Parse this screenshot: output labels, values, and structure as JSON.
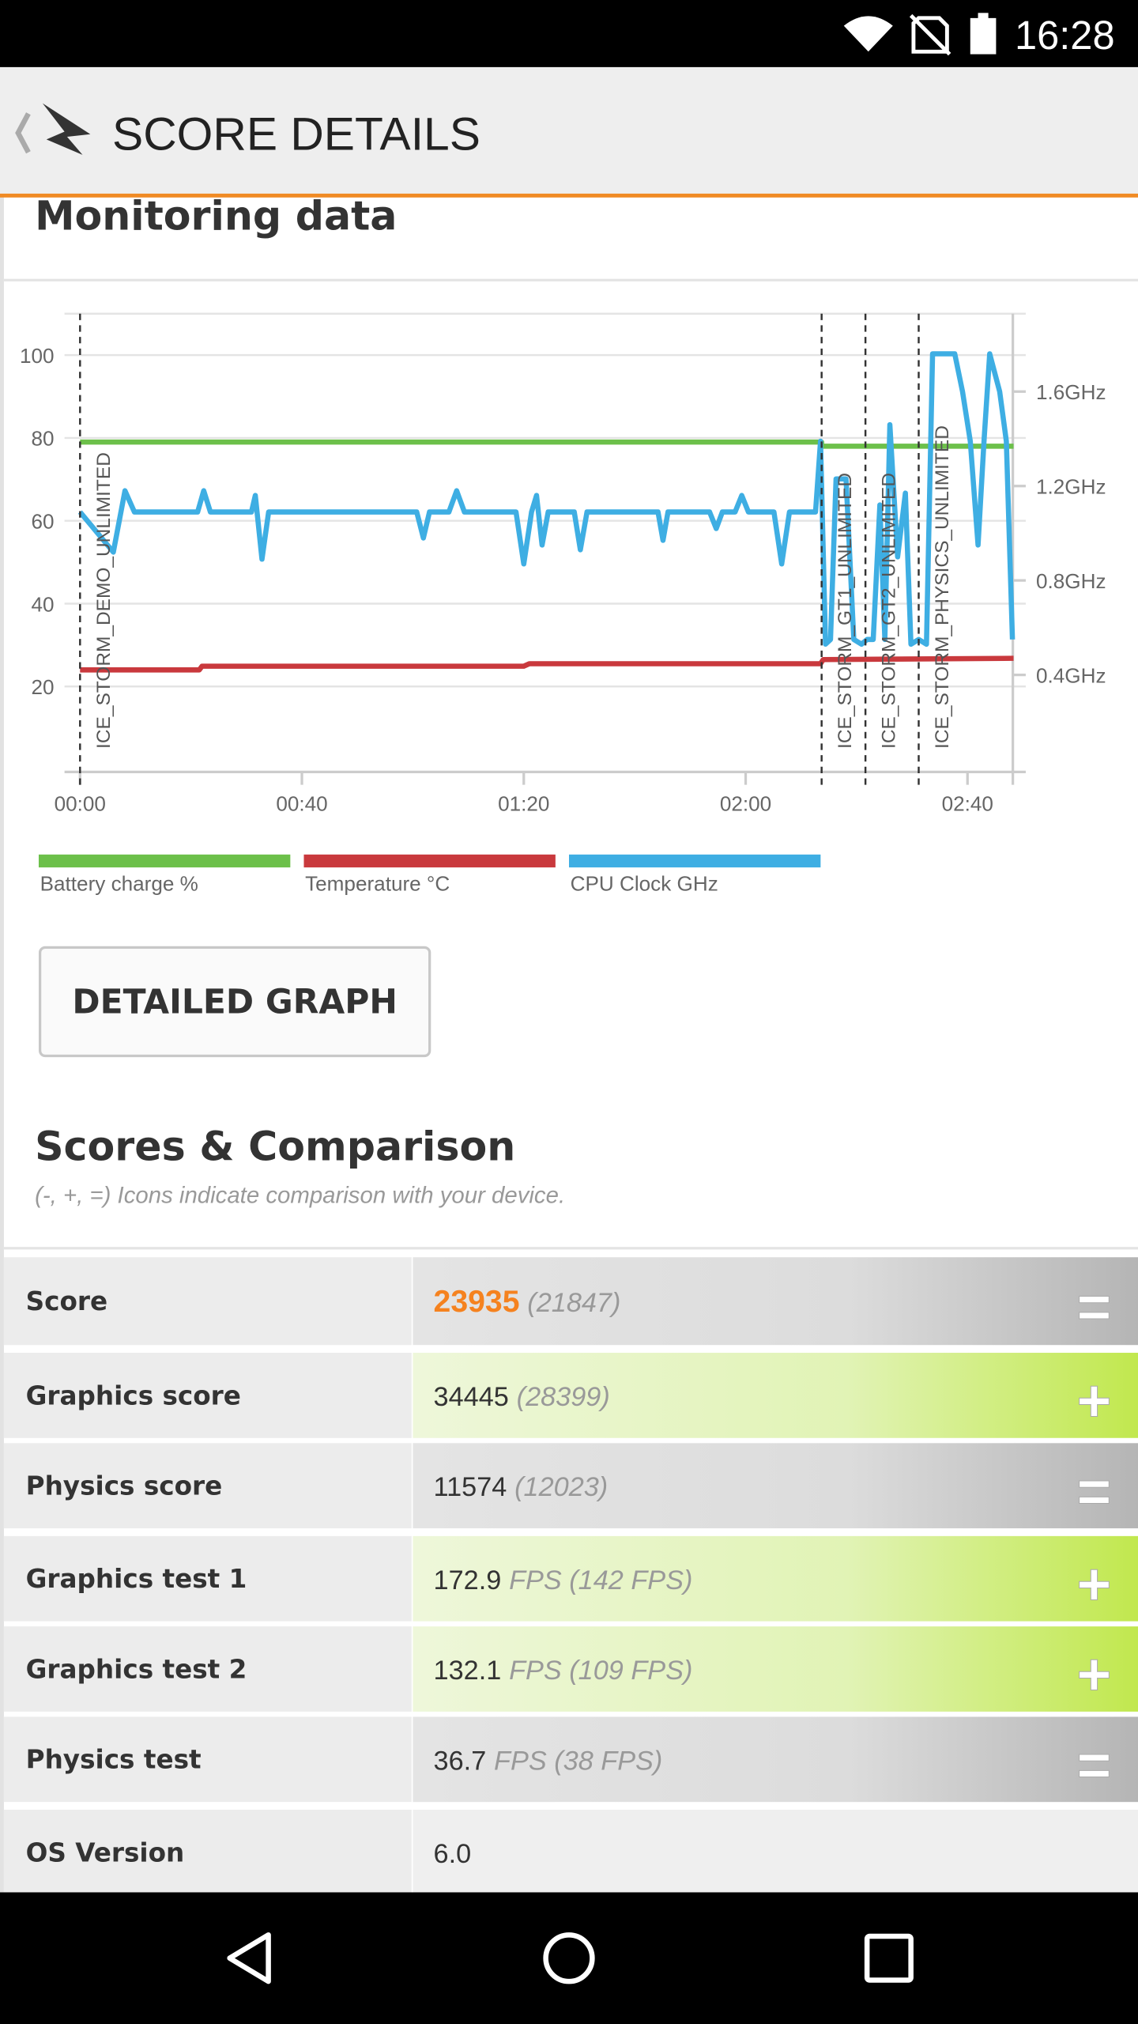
{
  "status_bar": {
    "time": "16:28"
  },
  "header": {
    "title": "SCORE DETAILS"
  },
  "monitoring": {
    "title": "Monitoring data",
    "chart": {
      "type": "line",
      "xlim": [
        -2.8,
        170.5
      ],
      "xticks": [
        {
          "value": 0,
          "label": "00:00"
        },
        {
          "value": 40,
          "label": "00:40"
        },
        {
          "value": 80,
          "label": "01:20"
        },
        {
          "value": 120,
          "label": "02:00"
        },
        {
          "value": 160,
          "label": "02:40"
        }
      ],
      "ylim": [
        0,
        110
      ],
      "yticks": [
        20,
        40,
        60,
        80,
        100
      ],
      "y2lim": [
        0,
        1.93
      ],
      "y2ticks": [
        {
          "value": 0.4,
          "label": "0.4GHz"
        },
        {
          "value": 0.8,
          "label": "0.8GHz"
        },
        {
          "value": 1.2,
          "label": "1.2GHz"
        },
        {
          "value": 1.6,
          "label": "1.6GHz"
        }
      ],
      "grid": true,
      "markers": [
        {
          "x": 0,
          "label": "ICE_STORM_DEMO_UNLIMITED"
        },
        {
          "x": 133.7,
          "label": "ICE_STORM_GT1_UNLIMITED"
        },
        {
          "x": 141.6,
          "label": "ICE_STORM_GT2_UNLIMITED"
        },
        {
          "x": 151.2,
          "label": "ICE_STORM_PHYSICS_UNLIMITED"
        }
      ],
      "series": [
        {
          "name": "Battery charge %",
          "color": "#6cc04a",
          "x": [
            0,
            133.7,
            133.7,
            168.3
          ],
          "values": [
            79,
            79,
            78,
            78
          ]
        },
        {
          "name": "Temperature °C",
          "color": "#c9393d",
          "x": [
            0,
            21.5,
            22,
            80,
            81,
            133.5,
            134,
            168.3
          ],
          "values": [
            24,
            24,
            24.9,
            24.9,
            25.5,
            25.5,
            26.5,
            26.8
          ]
        },
        {
          "name": "CPU Clock GHz",
          "color": "#3eaee3",
          "axis": "y2",
          "x": [
            0,
            6,
            8.1,
            9.8,
            21.2,
            22.3,
            23.5,
            30.9,
            31.6,
            32.8,
            34,
            60.7,
            61.9,
            63,
            66.5,
            67.9,
            69.3,
            78.6,
            80,
            81.4,
            82.3,
            83.3,
            84.4,
            89.1,
            90.2,
            91.4,
            104.2,
            105.1,
            106,
            113.5,
            114.7,
            115.8,
            118.1,
            119.3,
            120.5,
            125.1,
            126.5,
            127.9,
            132.6,
            133.5,
            134.4,
            135.3,
            136.3,
            138.1,
            139.5,
            140.9,
            141.9,
            143,
            144.2,
            145.1,
            146,
            147.4,
            148.8,
            149.8,
            151.2,
            152.6,
            153.7,
            157.7,
            159.1,
            160.5,
            161.9,
            163,
            164,
            165.8,
            167,
            168.1
          ],
          "values": [
            1.09,
            0.92,
            1.18,
            1.09,
            1.09,
            1.18,
            1.09,
            1.09,
            1.16,
            0.89,
            1.09,
            1.09,
            0.98,
            1.09,
            1.09,
            1.18,
            1.09,
            1.09,
            0.87,
            1.09,
            1.16,
            0.95,
            1.09,
            1.09,
            0.93,
            1.09,
            1.09,
            0.97,
            1.09,
            1.09,
            1.02,
            1.09,
            1.09,
            1.16,
            1.09,
            1.09,
            0.87,
            1.09,
            1.09,
            1.39,
            0.53,
            0.55,
            1.23,
            1.23,
            0.55,
            0.53,
            0.55,
            0.55,
            1.12,
            0.55,
            1.46,
            0.9,
            1.17,
            0.53,
            0.55,
            0.53,
            1.76,
            1.76,
            1.6,
            1.39,
            0.95,
            1.4,
            1.76,
            1.6,
            1.39,
            0.55
          ]
        }
      ]
    },
    "button": "DETAILED GRAPH"
  },
  "scores": {
    "title": "Scores & Comparison",
    "subtitle": "(-, +, =) Icons indicate comparison with your device.",
    "rows": [
      {
        "label": "Score",
        "value": 23935,
        "compare": "(21847)",
        "icon": "=",
        "value_color": "#f5821f"
      },
      {
        "label": "Graphics score",
        "value": 34445,
        "compare": "(28399)",
        "icon": "+"
      },
      {
        "label": "Physics score",
        "value": 11574,
        "compare": "(12023)",
        "icon": "="
      },
      {
        "label": "Graphics test 1",
        "value": 172.9,
        "compare": "FPS (142 FPS)",
        "icon": "+"
      },
      {
        "label": "Graphics test 2",
        "value": 132.1,
        "compare": "FPS (109 FPS)",
        "icon": "+"
      },
      {
        "label": "Physics test",
        "value": 36.7,
        "compare": "FPS (38 FPS)",
        "icon": "="
      },
      {
        "label": "OS Version",
        "value": "6.0"
      }
    ]
  }
}
